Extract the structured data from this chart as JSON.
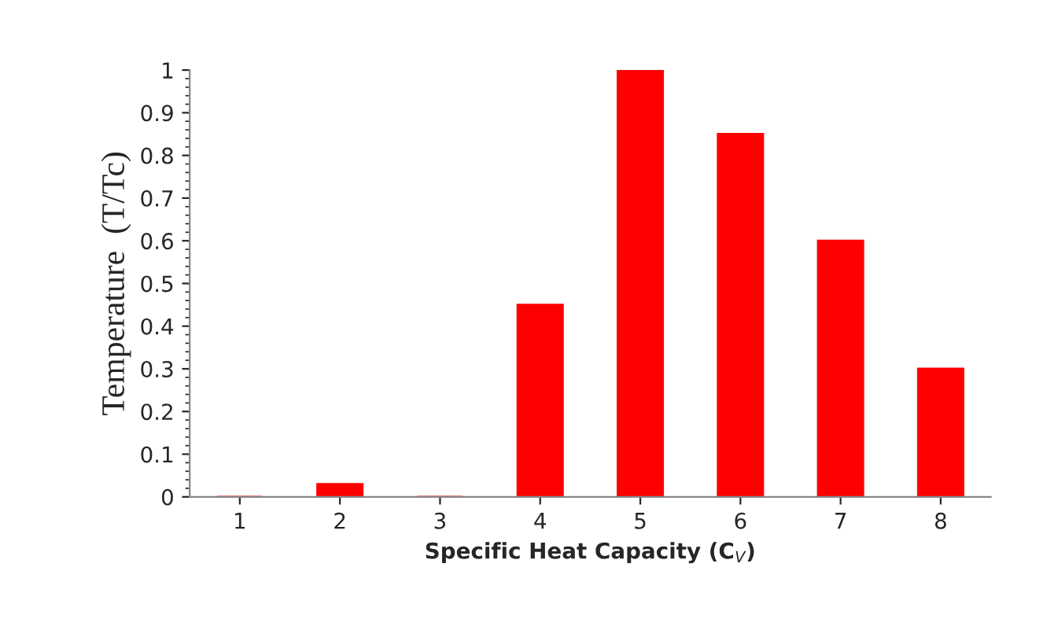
{
  "chart_data": {
    "type": "bar",
    "xlabel": "Specific Heat Capacity (C$_{V}$)",
    "ylabel": "Temperature  (T/Tc)",
    "categories": [
      "1",
      "2",
      "3",
      "4",
      "5",
      "6",
      "7",
      "8"
    ],
    "values": [
      0,
      0.03,
      0,
      0.45,
      1.0,
      0.85,
      0.6,
      0.3
    ],
    "color": "#ff0000",
    "ylim": [
      0,
      1
    ],
    "yticks": [
      0,
      0.1,
      0.2,
      0.3,
      0.4,
      0.5,
      0.6,
      0.7,
      0.8,
      0.9,
      1
    ],
    "grid": false,
    "legend": false
  }
}
